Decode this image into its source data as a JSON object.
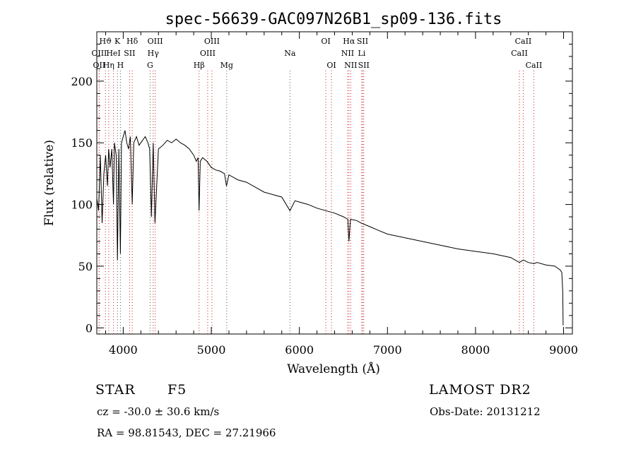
{
  "chart_data": {
    "type": "line",
    "title": "spec-56639-GAC097N26B1_sp09-136.fits",
    "xlabel": "Wavelength (Å)",
    "ylabel": "Flux (relative)",
    "xlim": [
      3700,
      9100
    ],
    "ylim": [
      -5,
      240
    ],
    "xticks": [
      4000,
      5000,
      6000,
      7000,
      8000,
      9000
    ],
    "yticks": [
      0,
      50,
      100,
      150,
      200
    ],
    "grid": false,
    "line_color": "#000000",
    "series": [
      {
        "x": [
          3700,
          3720,
          3740,
          3760,
          3780,
          3800,
          3820,
          3835,
          3850,
          3870,
          3889,
          3900,
          3920,
          3934,
          3950,
          3968,
          3980,
          4000,
          4020,
          4040,
          4060,
          4080,
          4102,
          4120,
          4150,
          4180,
          4200,
          4250,
          4280,
          4300,
          4320,
          4340,
          4360,
          4400,
          4450,
          4500,
          4550,
          4600,
          4650,
          4700,
          4750,
          4800,
          4830,
          4850,
          4861,
          4875,
          4900,
          4950,
          5000,
          5050,
          5100,
          5150,
          5172,
          5200,
          5300,
          5400,
          5500,
          5600,
          5700,
          5800,
          5893,
          5950,
          6000,
          6100,
          6200,
          6300,
          6400,
          6500,
          6550,
          6563,
          6580,
          6650,
          6700,
          6800,
          6900,
          7000,
          7200,
          7400,
          7600,
          7800,
          8000,
          8200,
          8400,
          8498,
          8542,
          8600,
          8662,
          8700,
          8800,
          8900,
          8960,
          8980,
          8990,
          8995
        ],
        "y": [
          105,
          95,
          140,
          85,
          125,
          140,
          115,
          145,
          130,
          145,
          100,
          150,
          140,
          55,
          145,
          60,
          150,
          155,
          160,
          150,
          145,
          155,
          100,
          150,
          155,
          148,
          150,
          155,
          150,
          145,
          90,
          150,
          85,
          145,
          148,
          152,
          150,
          153,
          150,
          148,
          145,
          140,
          135,
          138,
          95,
          135,
          138,
          135,
          130,
          128,
          127,
          125,
          115,
          124,
          120,
          118,
          114,
          110,
          108,
          106,
          95,
          103,
          102,
          100,
          97,
          95,
          93,
          90,
          88,
          70,
          88,
          87,
          85,
          82,
          79,
          76,
          73,
          70,
          67,
          64,
          62,
          60,
          57,
          53,
          55,
          53,
          52,
          53,
          51,
          50,
          47,
          45,
          30,
          2
        ]
      }
    ],
    "lines_red": [
      {
        "label": "Hϑ",
        "x": 3798,
        "row": 1
      },
      {
        "label": "OIII",
        "x": 3727,
        "row": 2
      },
      {
        "label": "OII",
        "x": 3727,
        "row": 3
      },
      {
        "label": "Hη",
        "x": 3835,
        "row": 3
      },
      {
        "label": "HeI",
        "x": 3889,
        "row": 2
      },
      {
        "label": "SII",
        "x": 4072,
        "row": 2
      },
      {
        "label": "Hδ",
        "x": 4102,
        "row": 1
      },
      {
        "label": "OIII",
        "x": 4363,
        "row": 1
      },
      {
        "label": "Hγ",
        "x": 4340,
        "row": 2
      },
      {
        "label": "Hβ",
        "x": 4861,
        "row": 3
      },
      {
        "label": "OIII",
        "x": 4959,
        "row": 2
      },
      {
        "label": "OIII",
        "x": 5007,
        "row": 1
      },
      {
        "label": "OI",
        "x": 6300,
        "row": 1
      },
      {
        "label": "OI",
        "x": 6364,
        "row": 3
      },
      {
        "label": "NII",
        "x": 6548,
        "row": 2
      },
      {
        "label": "Hα",
        "x": 6563,
        "row": 1
      },
      {
        "label": "NII",
        "x": 6583,
        "row": 3
      },
      {
        "label": "SII",
        "x": 6717,
        "row": 1
      },
      {
        "label": "SII",
        "x": 6731,
        "row": 3
      },
      {
        "label": "Li",
        "x": 6708,
        "row": 2
      },
      {
        "label": "CaII",
        "x": 8498,
        "row": 2
      },
      {
        "label": "CaII",
        "x": 8542,
        "row": 1
      },
      {
        "label": "CaII",
        "x": 8662,
        "row": 3
      }
    ],
    "lines_black": [
      {
        "label": "K",
        "x": 3934,
        "row": 1
      },
      {
        "label": "H",
        "x": 3968,
        "row": 3
      },
      {
        "label": "G",
        "x": 4305,
        "row": 3
      },
      {
        "label": "Mg",
        "x": 5175,
        "row": 3
      },
      {
        "label": "Na",
        "x": 5893,
        "row": 2
      }
    ]
  },
  "info": {
    "class_label": "STAR",
    "subclass": "F5",
    "survey": "LAMOST DR2",
    "redshift": "cz = -30.0 ± 30.6 km/s",
    "obs_date": "Obs-Date: 20131212",
    "coords": "RA =  98.81543, DEC =  27.21966"
  }
}
